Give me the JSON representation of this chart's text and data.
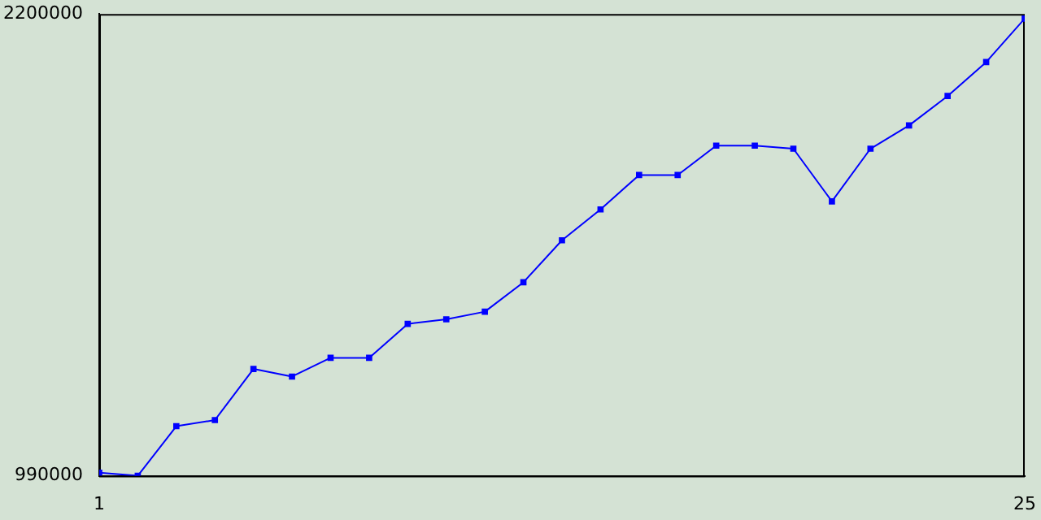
{
  "chart_data": {
    "type": "line",
    "x": [
      1,
      2,
      3,
      4,
      5,
      6,
      7,
      8,
      9,
      10,
      11,
      12,
      13,
      14,
      15,
      16,
      17,
      18,
      19,
      20,
      21,
      22,
      23,
      24,
      25
    ],
    "series": [
      {
        "color": "#0000ff",
        "values": [
          998000,
          990000,
          1120000,
          1136000,
          1270000,
          1250000,
          1299000,
          1299000,
          1388000,
          1400000,
          1420000,
          1497000,
          1607000,
          1688000,
          1778000,
          1778000,
          1855000,
          1855000,
          1847000,
          1709000,
          1847000,
          1908000,
          1985000,
          2074000,
          2188000
        ]
      }
    ],
    "xlim": [
      1,
      25
    ],
    "xticks": [
      1,
      25
    ],
    "ylim": [
      990000,
      2200000
    ],
    "yticks": [
      990000,
      2200000
    ],
    "grid": false,
    "legend": false,
    "marker": "square",
    "line_style": "solid"
  }
}
